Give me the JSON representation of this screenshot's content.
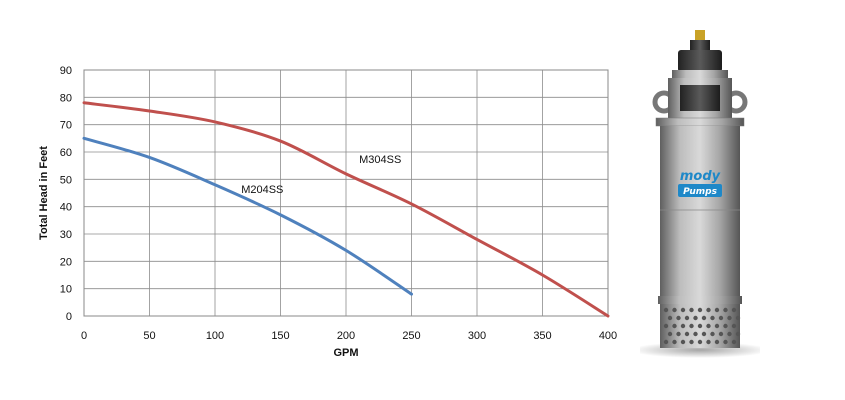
{
  "chart_data": {
    "type": "line",
    "title": "",
    "xlabel": "GPM",
    "ylabel": "Total Head in Feet",
    "xlim": [
      0,
      400
    ],
    "ylim": [
      0,
      90
    ],
    "xticks": [
      0,
      50,
      100,
      150,
      200,
      250,
      300,
      350,
      400
    ],
    "yticks": [
      0,
      10,
      20,
      30,
      40,
      50,
      60,
      70,
      80,
      90
    ],
    "grid": true,
    "series": [
      {
        "name": "M304SS",
        "color": "#c0504d",
        "x": [
          0,
          50,
          100,
          150,
          200,
          250,
          300,
          350,
          400
        ],
        "y": [
          78,
          75,
          71,
          64,
          52,
          41,
          28,
          15,
          0
        ]
      },
      {
        "name": "M204SS",
        "color": "#4f81bd",
        "x": [
          0,
          50,
          100,
          150,
          200,
          250
        ],
        "y": [
          65,
          58,
          48,
          37,
          24,
          8
        ]
      }
    ]
  },
  "product_image": {
    "icon": "submersible-pump",
    "logo": "mody Pumps",
    "body_color": "#a8a8a8",
    "logo_color": "#1e88c8"
  }
}
